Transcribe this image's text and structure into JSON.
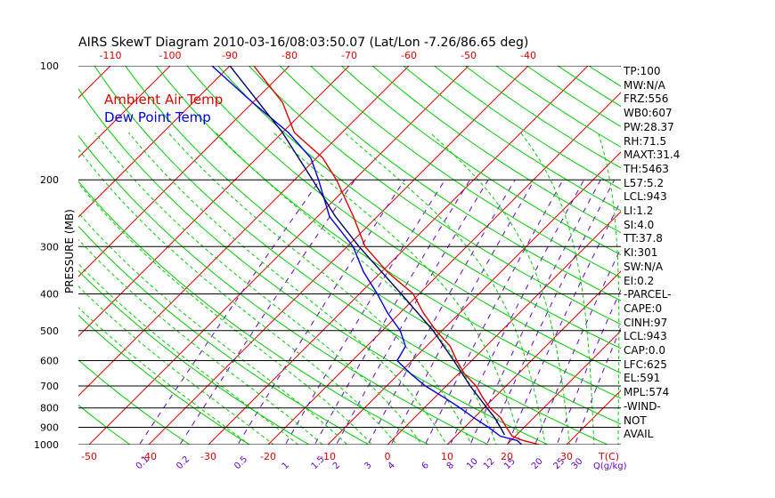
{
  "chart_data": {
    "type": "line",
    "title": "AIRS SkewT Diagram 2010-03-16/08:03:50.07 (Lat/Lon -7.26/86.65 deg)",
    "ylabel": "PRESSURE (MB)",
    "y_scale": "log",
    "ylim": [
      1000,
      100
    ],
    "pressure_ticks": [
      "100",
      "200",
      "300",
      "400",
      "500",
      "600",
      "700",
      "800",
      "900",
      "1000"
    ],
    "pressure_lines": [
      100,
      200,
      300,
      400,
      500,
      600,
      700,
      800,
      900,
      1000
    ],
    "top_temp_ticks": [
      "-120",
      "-110",
      "-100",
      "-90",
      "-80",
      "-70",
      "-60",
      "-50",
      "-40"
    ],
    "bottom_temp_ticks": [
      "-50",
      "-40",
      "-30",
      "-20",
      "-10",
      "0",
      "10",
      "20",
      "30"
    ],
    "bottom_axis_unit": "T(C)",
    "mixing_ratio_labels": [
      "0.1",
      "0.2",
      "0.5",
      "1",
      "1.5",
      "2",
      "3",
      "4",
      "6",
      "8",
      "10",
      "12",
      "15",
      "20",
      "25",
      "30"
    ],
    "mixing_ratio_unit": "Q(g/kg)",
    "legend": [
      {
        "label": "Ambient Air Temp",
        "color": "#dd0000"
      },
      {
        "label": "Dew Point Temp",
        "color": "#0000dd"
      }
    ],
    "series": [
      {
        "name": "Ambient Air Temp",
        "color": "#dd0000",
        "points": [
          {
            "p": 1000,
            "t": 25.5
          },
          {
            "p": 975,
            "t": 22.0
          },
          {
            "p": 950,
            "t": 19.5
          },
          {
            "p": 900,
            "t": 17.0
          },
          {
            "p": 850,
            "t": 14.5
          },
          {
            "p": 800,
            "t": 11.0
          },
          {
            "p": 750,
            "t": 8.0
          },
          {
            "p": 700,
            "t": 5.0
          },
          {
            "p": 650,
            "t": 1.0
          },
          {
            "p": 600,
            "t": -2.5
          },
          {
            "p": 550,
            "t": -6.0
          },
          {
            "p": 500,
            "t": -11.0
          },
          {
            "p": 450,
            "t": -16.0
          },
          {
            "p": 400,
            "t": -21.0
          },
          {
            "p": 350,
            "t": -29.0
          },
          {
            "p": 300,
            "t": -37.0
          },
          {
            "p": 250,
            "t": -44.0
          },
          {
            "p": 200,
            "t": -53.0
          },
          {
            "p": 175,
            "t": -59.0
          },
          {
            "p": 150,
            "t": -68.0
          },
          {
            "p": 125,
            "t": -75.0
          },
          {
            "p": 100,
            "t": -86.0
          }
        ]
      },
      {
        "name": "Dew Point Temp",
        "color": "#0000dd",
        "points": [
          {
            "p": 1000,
            "t": 22.5
          },
          {
            "p": 975,
            "t": 21.0
          },
          {
            "p": 950,
            "t": 17.5
          },
          {
            "p": 900,
            "t": 14.0
          },
          {
            "p": 850,
            "t": 10.0
          },
          {
            "p": 800,
            "t": 6.0
          },
          {
            "p": 750,
            "t": 1.5
          },
          {
            "p": 700,
            "t": -3.5
          },
          {
            "p": 650,
            "t": -8.0
          },
          {
            "p": 600,
            "t": -12.5
          },
          {
            "p": 550,
            "t": -13.5
          },
          {
            "p": 500,
            "t": -17.0
          },
          {
            "p": 450,
            "t": -22.0
          },
          {
            "p": 400,
            "t": -27.0
          },
          {
            "p": 350,
            "t": -33.0
          },
          {
            "p": 300,
            "t": -39.0
          },
          {
            "p": 250,
            "t": -48.0
          },
          {
            "p": 200,
            "t": -56.0
          },
          {
            "p": 175,
            "t": -61.0
          },
          {
            "p": 150,
            "t": -69.0
          },
          {
            "p": 125,
            "t": -80.0
          },
          {
            "p": 100,
            "t": -93.0
          }
        ]
      },
      {
        "name": "Parcel",
        "color": "#000066",
        "points": [
          {
            "p": 943,
            "t": 18.0
          },
          {
            "p": 900,
            "t": 16.0
          },
          {
            "p": 850,
            "t": 13.5
          },
          {
            "p": 800,
            "t": 10.5
          },
          {
            "p": 700,
            "t": 4.0
          },
          {
            "p": 600,
            "t": -3.0
          },
          {
            "p": 500,
            "t": -11.5
          },
          {
            "p": 400,
            "t": -23.0
          },
          {
            "p": 300,
            "t": -38.0
          },
          {
            "p": 250,
            "t": -47.0
          },
          {
            "p": 200,
            "t": -57.0
          },
          {
            "p": 150,
            "t": -70.0
          },
          {
            "p": 100,
            "t": -90.0
          }
        ]
      }
    ],
    "indices": [
      "TP:100",
      "MW:N/A",
      "FRZ:556",
      "WB0:607",
      "PW:28.37",
      "RH:71.5",
      "MAXT:31.4",
      "TH:5463",
      "L57:5.2",
      "LCL:943",
      "LI:1.2",
      "SI:4.0",
      "TT:37.8",
      "KI:301",
      "SW:N/A",
      "EI:0.2",
      "-PARCEL-",
      "CAPE:0",
      "CINH:97",
      "LCL:943",
      "CAP:0.0",
      "LFC:625",
      "EL:591",
      "MPL:574",
      "-WIND-",
      "NOT",
      "AVAIL"
    ],
    "colors": {
      "isotherm": "#dd0000",
      "dry_adiabat": "#00cc00",
      "moist_adiabat": "#00cc00",
      "mixing_ratio": "#6600cc",
      "isobar": "#000000"
    }
  }
}
